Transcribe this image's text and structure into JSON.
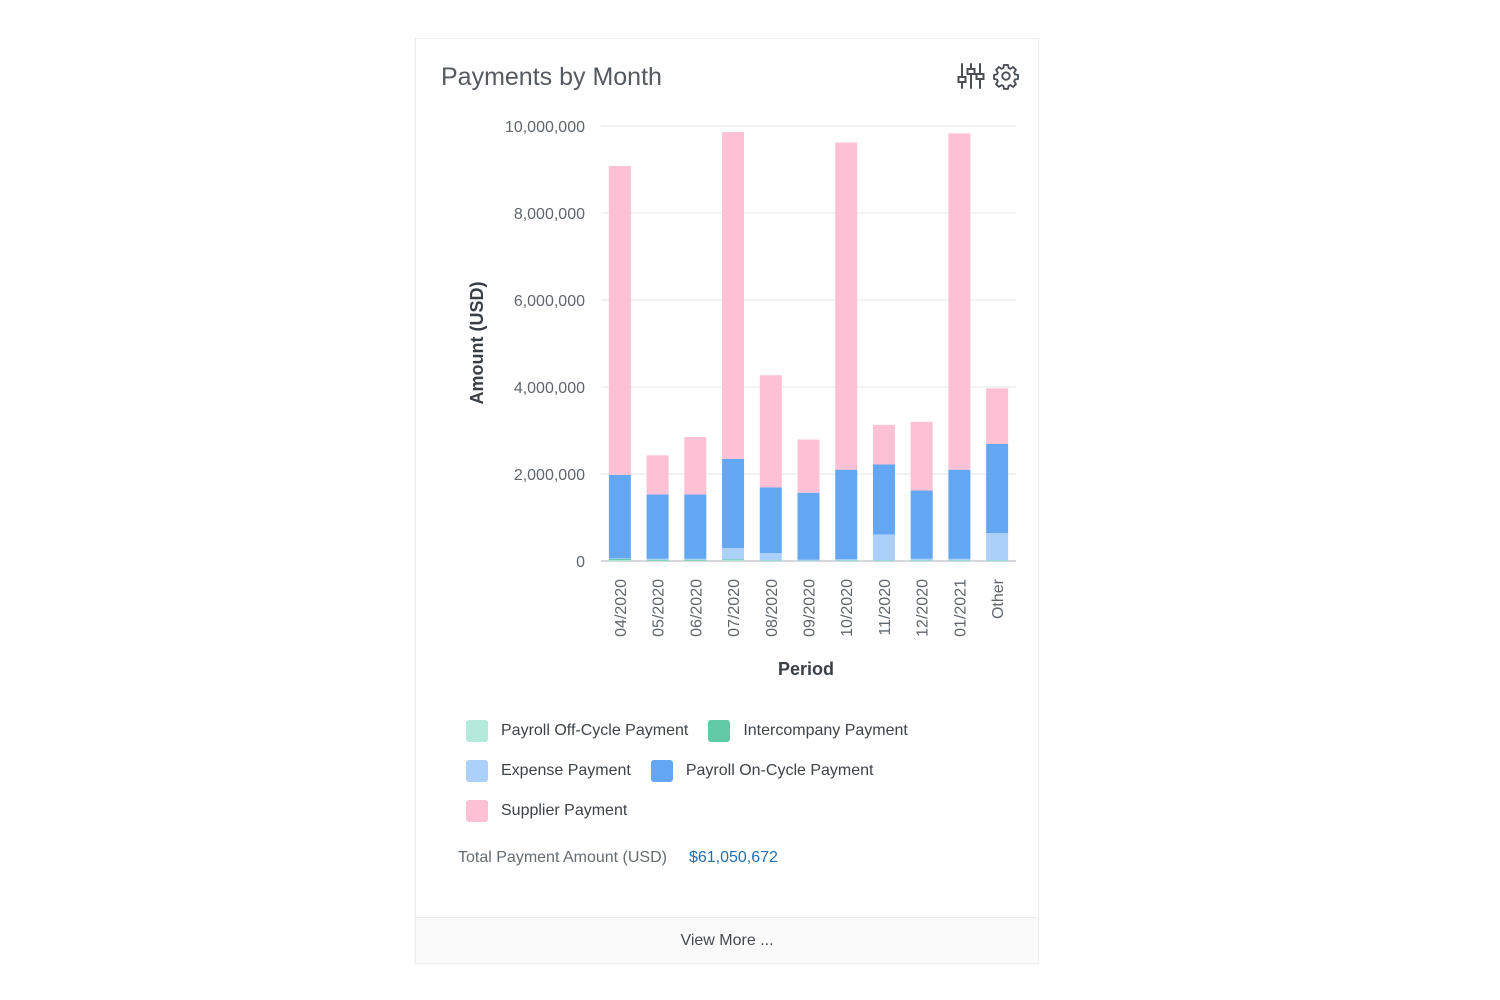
{
  "card": {
    "title": "Payments by Month",
    "icons": [
      "filter-sliders-icon",
      "gear-icon"
    ]
  },
  "chart_data": {
    "type": "bar",
    "stacked": true,
    "title": "",
    "xlabel": "Period",
    "ylabel": "Amount (USD)",
    "ylim": [
      0,
      10000000
    ],
    "yticks": [
      "0",
      "2,000,000",
      "4,000,000",
      "6,000,000",
      "8,000,000",
      "10,000,000"
    ],
    "grid": true,
    "legend_position": "bottom",
    "categories": [
      "04/2020",
      "05/2020",
      "06/2020",
      "07/2020",
      "08/2020",
      "09/2020",
      "10/2020",
      "11/2020",
      "12/2020",
      "01/2021",
      "Other"
    ],
    "series": [
      {
        "name": "Payroll Off-Cycle Payment",
        "color": "#b3eadb",
        "values": [
          20000,
          10000,
          10000,
          20000,
          10000,
          5000,
          10000,
          10000,
          10000,
          10000,
          10000
        ]
      },
      {
        "name": "Intercompany Payment",
        "color": "#5fcaa5",
        "values": [
          30000,
          20000,
          20000,
          20000,
          10000,
          5000,
          10000,
          10000,
          10000,
          10000,
          10000
        ]
      },
      {
        "name": "Expense Payment",
        "color": "#abd1fb",
        "values": [
          10000,
          20000,
          20000,
          260000,
          160000,
          20000,
          20000,
          590000,
          30000,
          30000,
          620000
        ]
      },
      {
        "name": "Payroll On-Cycle Payment",
        "color": "#63a6f2",
        "values": [
          1920000,
          1480000,
          1480000,
          2050000,
          1510000,
          1540000,
          2060000,
          1610000,
          1570000,
          2050000,
          2050000
        ]
      },
      {
        "name": "Supplier Payment",
        "color": "#fdc0d4",
        "values": [
          7100000,
          900000,
          1320000,
          7510000,
          2580000,
          1220000,
          7520000,
          910000,
          1580000,
          7730000,
          1280000
        ]
      }
    ]
  },
  "legend": {
    "rows": [
      [
        "Payroll Off-Cycle Payment",
        "Intercompany Payment"
      ],
      [
        "Expense Payment",
        "Payroll On-Cycle Payment"
      ],
      [
        "Supplier Payment"
      ]
    ]
  },
  "summary": {
    "total_label": "Total Payment Amount (USD)",
    "total_value": "$61,050,672"
  },
  "footer": {
    "view_more_label": "View More ..."
  }
}
